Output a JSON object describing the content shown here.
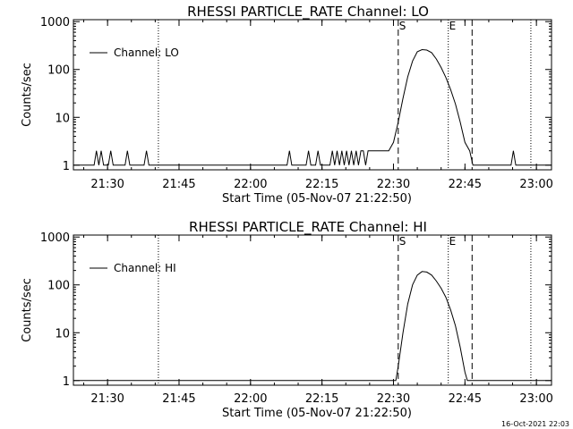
{
  "footer_text": "16-Oct-2021 22:03",
  "chart_data": [
    {
      "type": "line",
      "title": "RHESSI PARTICLE_RATE Channel: LO",
      "xlabel": "Start Time (05-Nov-07 21:22:50)",
      "ylabel": "Counts/sec",
      "yscale": "log",
      "xlim": [
        "21:22:50",
        "23:03:10"
      ],
      "ylim": [
        0.8,
        1100
      ],
      "x_ticks": [
        "21:30",
        "21:45",
        "22:00",
        "22:15",
        "22:30",
        "22:45",
        "23:00"
      ],
      "y_ticks": [
        "1",
        "10",
        "100",
        "1000"
      ],
      "legend": {
        "label": "Channel: LO",
        "position": "top-left"
      },
      "markers": [
        {
          "time": "21:40:40",
          "style": "dotted",
          "label": ""
        },
        {
          "time": "22:31:00",
          "style": "dashed",
          "label": "S"
        },
        {
          "time": "22:41:30",
          "style": "dotted",
          "label": "E"
        },
        {
          "time": "22:46:30",
          "style": "dashed",
          "label": ""
        },
        {
          "time": "22:58:50",
          "style": "dotted",
          "label": ""
        }
      ],
      "series": [
        {
          "name": "Channel: LO",
          "points": [
            [
              "21:22:50",
              1
            ],
            [
              "21:27:10",
              1
            ],
            [
              "21:27:40",
              2
            ],
            [
              "21:28:10",
              1
            ],
            [
              "21:28:40",
              2
            ],
            [
              "21:29:10",
              1
            ],
            [
              "21:30:10",
              1
            ],
            [
              "21:30:40",
              2
            ],
            [
              "21:31:10",
              1
            ],
            [
              "21:33:40",
              1
            ],
            [
              "21:34:10",
              2
            ],
            [
              "21:34:40",
              1
            ],
            [
              "21:37:40",
              1
            ],
            [
              "21:38:10",
              2
            ],
            [
              "21:38:40",
              1
            ],
            [
              "22:07:40",
              1
            ],
            [
              "22:08:10",
              2
            ],
            [
              "22:08:40",
              1
            ],
            [
              "22:11:40",
              1
            ],
            [
              "22:12:10",
              2
            ],
            [
              "22:12:40",
              1
            ],
            [
              "22:13:40",
              1
            ],
            [
              "22:14:10",
              2
            ],
            [
              "22:14:40",
              1
            ],
            [
              "22:16:40",
              1
            ],
            [
              "22:17:10",
              2
            ],
            [
              "22:17:40",
              1
            ],
            [
              "22:18:10",
              2
            ],
            [
              "22:18:40",
              1
            ],
            [
              "22:19:10",
              2
            ],
            [
              "22:19:40",
              1
            ],
            [
              "22:20:10",
              2
            ],
            [
              "22:20:40",
              1
            ],
            [
              "22:21:10",
              2
            ],
            [
              "22:21:40",
              1
            ],
            [
              "22:22:10",
              2
            ],
            [
              "22:22:40",
              1
            ],
            [
              "22:23:10",
              2
            ],
            [
              "22:23:40",
              2
            ],
            [
              "22:24:10",
              1
            ],
            [
              "22:24:40",
              2
            ],
            [
              "22:27:00",
              2
            ],
            [
              "22:29:00",
              2
            ],
            [
              "22:30:00",
              3
            ],
            [
              "22:31:00",
              8
            ],
            [
              "22:32:00",
              25
            ],
            [
              "22:33:00",
              70
            ],
            [
              "22:34:00",
              150
            ],
            [
              "22:35:00",
              235
            ],
            [
              "22:36:00",
              260
            ],
            [
              "22:37:00",
              255
            ],
            [
              "22:38:00",
              225
            ],
            [
              "22:39:00",
              165
            ],
            [
              "22:40:00",
              110
            ],
            [
              "22:41:00",
              68
            ],
            [
              "22:42:00",
              38
            ],
            [
              "22:43:00",
              19
            ],
            [
              "22:44:00",
              8
            ],
            [
              "22:45:00",
              3
            ],
            [
              "22:46:00",
              2
            ],
            [
              "22:46:40",
              1
            ],
            [
              "22:54:40",
              1
            ],
            [
              "22:55:10",
              2
            ],
            [
              "22:55:40",
              1
            ],
            [
              "23:03:10",
              1
            ]
          ]
        }
      ]
    },
    {
      "type": "line",
      "title": "RHESSI PARTICLE_RATE Channel: HI",
      "xlabel": "Start Time (05-Nov-07 21:22:50)",
      "ylabel": "Counts/sec",
      "yscale": "log",
      "xlim": [
        "21:22:50",
        "23:03:10"
      ],
      "ylim": [
        0.8,
        1100
      ],
      "x_ticks": [
        "21:30",
        "21:45",
        "22:00",
        "22:15",
        "22:30",
        "22:45",
        "23:00"
      ],
      "y_ticks": [
        "1",
        "10",
        "100",
        "1000"
      ],
      "legend": {
        "label": "Channel: HI",
        "position": "top-left"
      },
      "markers": [
        {
          "time": "21:40:40",
          "style": "dotted",
          "label": ""
        },
        {
          "time": "22:31:00",
          "style": "dashed",
          "label": "S"
        },
        {
          "time": "22:41:30",
          "style": "dotted",
          "label": "E"
        },
        {
          "time": "22:46:30",
          "style": "dashed",
          "label": ""
        },
        {
          "time": "22:58:50",
          "style": "dotted",
          "label": ""
        }
      ],
      "series": [
        {
          "name": "Channel: HI",
          "points": [
            [
              "21:22:50",
              1
            ],
            [
              "22:30:30",
              1
            ],
            [
              "22:31:00",
              2
            ],
            [
              "22:32:00",
              10
            ],
            [
              "22:33:00",
              40
            ],
            [
              "22:34:00",
              100
            ],
            [
              "22:35:00",
              160
            ],
            [
              "22:36:00",
              190
            ],
            [
              "22:37:00",
              185
            ],
            [
              "22:38:00",
              160
            ],
            [
              "22:39:00",
              120
            ],
            [
              "22:40:00",
              85
            ],
            [
              "22:41:00",
              55
            ],
            [
              "22:42:00",
              30
            ],
            [
              "22:43:00",
              14
            ],
            [
              "22:44:00",
              5
            ],
            [
              "22:45:00",
              1.5
            ],
            [
              "22:45:30",
              1
            ],
            [
              "23:03:10",
              1
            ]
          ]
        }
      ]
    }
  ]
}
